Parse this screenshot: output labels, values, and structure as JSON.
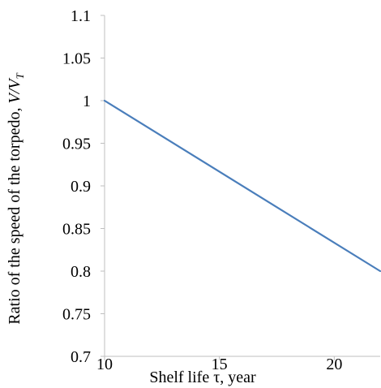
{
  "chart_data": {
    "type": "line",
    "title": "",
    "xlabel": "Shelf life τ, year",
    "ylabel": {
      "prefix": "Ratio of the speed of the torpedo, ",
      "v": "V",
      "slash": "/",
      "vt": "V",
      "sub": "T"
    },
    "xlim": [
      10,
      22
    ],
    "ylim": [
      0.7,
      1.1
    ],
    "x_ticks": [
      10,
      15,
      20
    ],
    "x_tick_labels": [
      "10",
      "15",
      "20"
    ],
    "y_ticks": [
      0.7,
      0.75,
      0.8,
      0.85,
      0.9,
      0.95,
      1.0,
      1.05,
      1.1
    ],
    "y_tick_labels": [
      "0.7",
      "0.75",
      "0.8",
      "0.85",
      "0.9",
      "0.95",
      "1",
      "1.05",
      "1.1"
    ],
    "grid": false,
    "legend": "none",
    "series": [
      {
        "color": "#4a7ebb",
        "x": [
          10,
          22
        ],
        "y": [
          1.0,
          0.8
        ]
      }
    ]
  }
}
